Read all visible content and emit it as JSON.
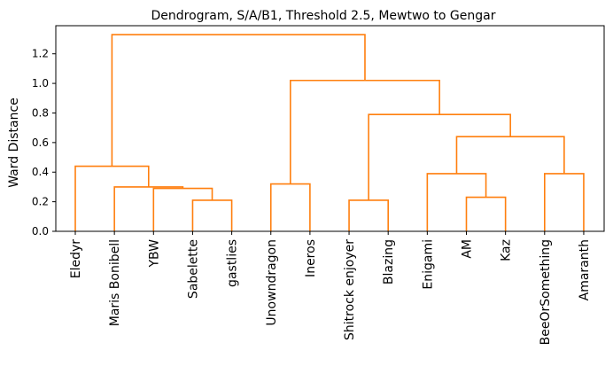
{
  "chart_data": {
    "type": "dendrogram",
    "title": "Dendrogram, S/A/B1, Threshold 2.5, Mewtwo to Gengar",
    "xlabel": "",
    "ylabel": "Ward Distance",
    "ylim": [
      0,
      1.39
    ],
    "yticks": [
      "0.0",
      "0.2",
      "0.4",
      "0.6",
      "0.8",
      "1.0",
      "1.2"
    ],
    "leaves": [
      "Eledyr",
      "Maris Bonibell",
      "YBW",
      "Sabelette",
      "gastlies",
      "Unowndragon",
      "Ineros",
      "Shitrock enjoyer",
      "Blazing",
      "Enigami",
      "AM",
      "Kaz",
      "BeeOrSomething",
      "Amaranth"
    ],
    "link_color": "#ff7f0e",
    "merges": [
      {
        "a": "L3",
        "b": "L4",
        "height": 0.21
      },
      {
        "a": "L2",
        "b": "M0",
        "height": 0.29
      },
      {
        "a": "L1",
        "b": "M1",
        "height": 0.3
      },
      {
        "a": "L0",
        "b": "M2",
        "height": 0.44
      },
      {
        "a": "L5",
        "b": "L6",
        "height": 0.32
      },
      {
        "a": "L7",
        "b": "L8",
        "height": 0.21
      },
      {
        "a": "L10",
        "b": "L11",
        "height": 0.23
      },
      {
        "a": "L9",
        "b": "M6",
        "height": 0.39
      },
      {
        "a": "L12",
        "b": "L13",
        "height": 0.39
      },
      {
        "a": "M7",
        "b": "M8",
        "height": 0.64
      },
      {
        "a": "M5",
        "b": "M9",
        "height": 0.79
      },
      {
        "a": "M4",
        "b": "M10",
        "height": 1.02
      },
      {
        "a": "M3",
        "b": "M11",
        "height": 1.33
      }
    ]
  }
}
